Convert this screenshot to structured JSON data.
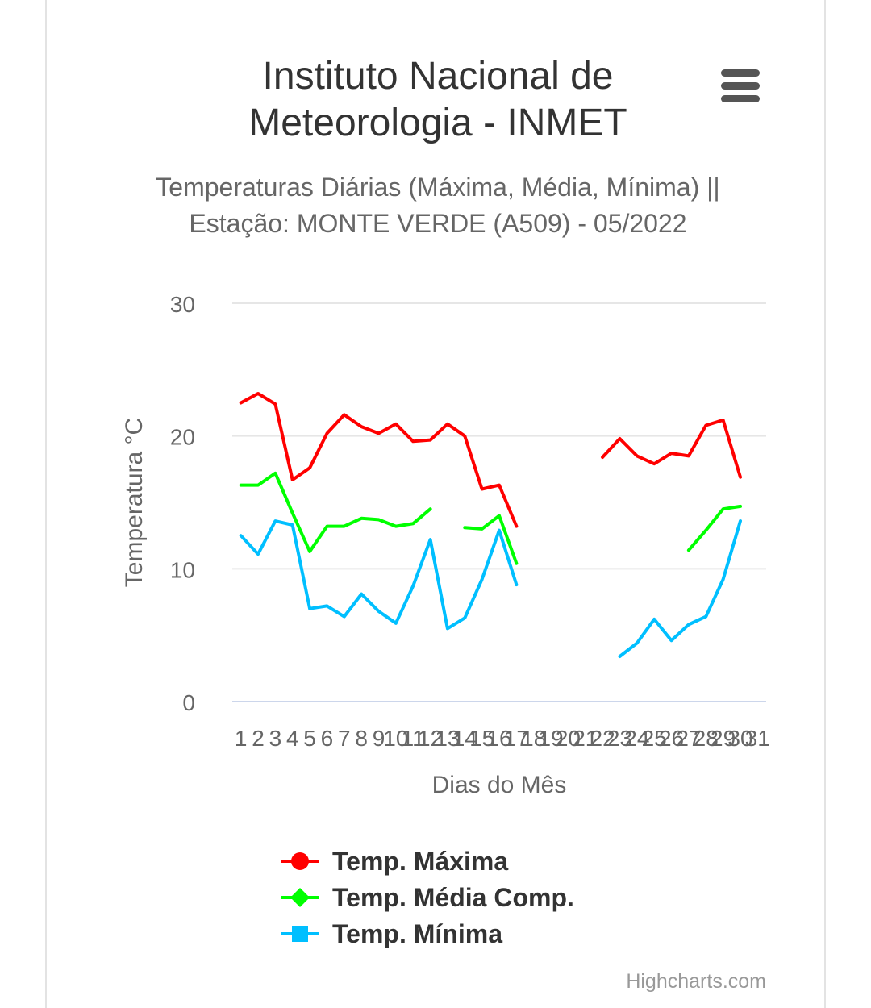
{
  "chart_data": {
    "type": "line",
    "title": "Instituto Nacional de Meteorologia - INMET",
    "subtitle": "Temperaturas Diárias (Máxima, Média, Mínima) || Estação: MONTE VERDE (A509) - 05/2022",
    "xlabel": "Dias do Mês",
    "ylabel": "Temperatura °C",
    "ylim": [
      0,
      30
    ],
    "yticks": [
      0,
      10,
      20,
      30
    ],
    "grid": true,
    "legend_position": "bottom",
    "categories": [
      "1",
      "2",
      "3",
      "4",
      "5",
      "6",
      "7",
      "8",
      "9",
      "10",
      "11",
      "12",
      "13",
      "14",
      "15",
      "16",
      "17",
      "18",
      "19",
      "20",
      "21",
      "22",
      "23",
      "24",
      "25",
      "26",
      "27",
      "28",
      "29",
      "30",
      "31"
    ],
    "series": [
      {
        "name": "Temp. Máxima",
        "color": "#ff0000",
        "marker": "circle",
        "values": [
          22.5,
          23.2,
          22.4,
          16.7,
          17.6,
          20.2,
          21.6,
          20.7,
          20.2,
          20.9,
          19.6,
          19.7,
          20.9,
          20.0,
          16.0,
          16.3,
          13.2,
          null,
          null,
          null,
          null,
          18.4,
          19.8,
          18.5,
          17.9,
          18.7,
          18.5,
          20.8,
          21.2,
          16.9,
          null
        ]
      },
      {
        "name": "Temp. Média Comp.",
        "color": "#00ff00",
        "marker": "diamond",
        "values": [
          16.3,
          16.3,
          17.2,
          14.2,
          11.3,
          13.2,
          13.2,
          13.8,
          13.7,
          13.2,
          13.4,
          14.5,
          null,
          13.1,
          13.0,
          14.0,
          10.4,
          null,
          null,
          null,
          null,
          null,
          null,
          null,
          null,
          null,
          11.4,
          12.9,
          14.5,
          14.7,
          null
        ]
      },
      {
        "name": "Temp. Mínima",
        "color": "#00bfff",
        "marker": "square",
        "values": [
          12.5,
          11.1,
          13.6,
          13.3,
          7.0,
          7.2,
          6.4,
          8.1,
          6.8,
          5.9,
          8.7,
          12.2,
          5.5,
          6.3,
          9.2,
          12.9,
          8.8,
          null,
          null,
          null,
          null,
          null,
          3.4,
          4.4,
          6.2,
          4.6,
          5.8,
          6.4,
          9.2,
          13.6,
          null
        ]
      }
    ]
  },
  "credits": "Highcharts.com"
}
